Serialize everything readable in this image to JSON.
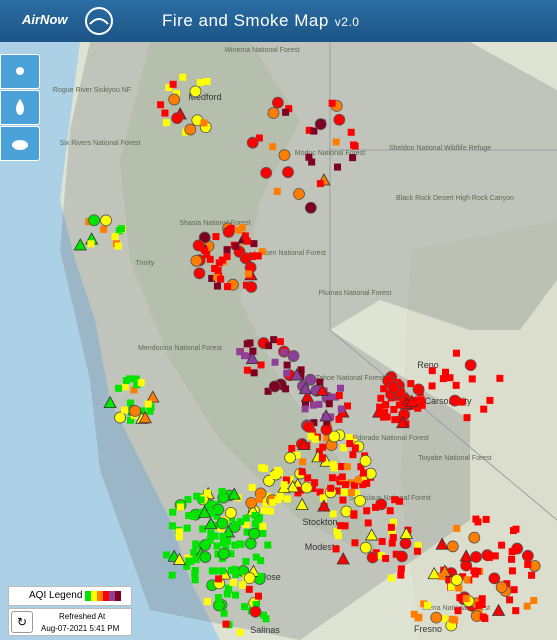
{
  "header": {
    "logo_text": "AirNow",
    "title": "Fire and Smoke Map",
    "version": "v2.0"
  },
  "map": {
    "labels": [
      "Winema National Forest",
      "Rogue River Siskiyou NF",
      "Medford",
      "Six Rivers National Forest",
      "Modoc National Forest",
      "Sheldon National Wildlife Refuge",
      "Black Rock Desert High Rock Canyon",
      "Shasta National Forest",
      "Lassen National Forest",
      "Trinity",
      "Mendocino National Forest",
      "Plumas National Forest",
      "Tahoe National Forest",
      "Reno",
      "Carson City",
      "Eldorado National Forest",
      "Toiyabe National Forest",
      "Stanislaus National Forest",
      "Stockton",
      "Modesto",
      "San Jose",
      "Sierra National Forest",
      "Fresno",
      "Salinas"
    ]
  },
  "legend": {
    "title": "AQI Legend"
  },
  "refresh": {
    "label": "Refreshed At",
    "timestamp": "Aug-07-2021 5:41 PM"
  }
}
